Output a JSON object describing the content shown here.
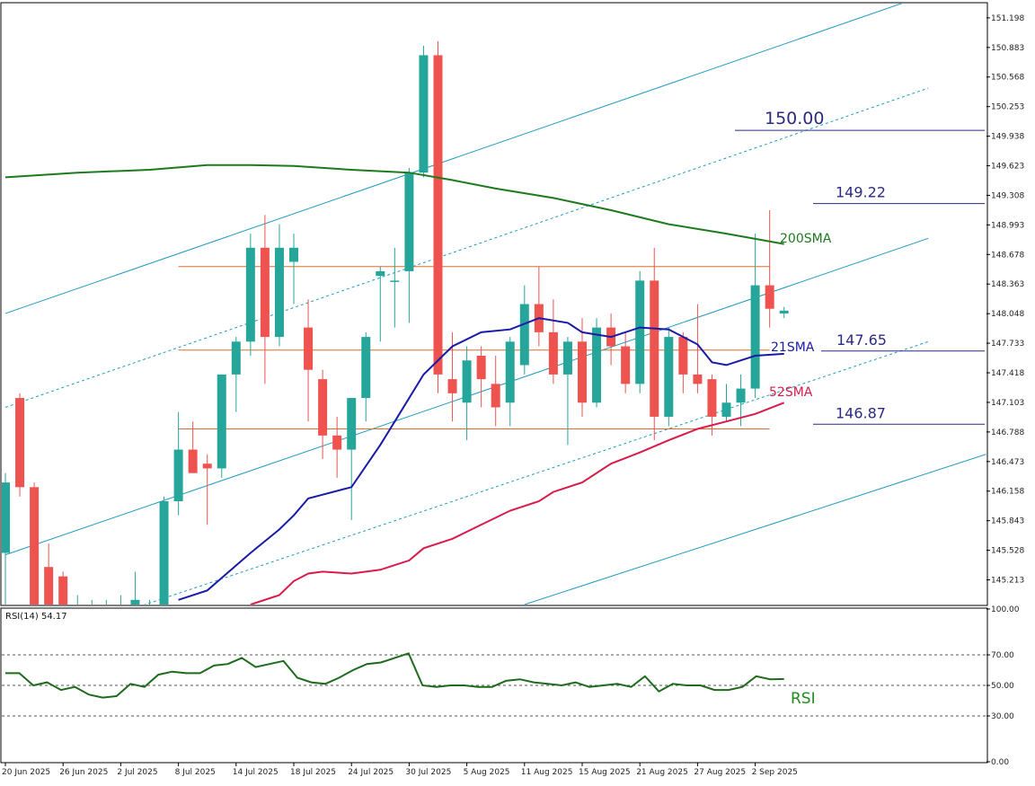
{
  "chart_data": [
    {
      "type": "candlestick",
      "title": "",
      "ylim": [
        144.95,
        151.35
      ],
      "y_ticks": [
        "151.198",
        "150.883",
        "150.568",
        "150.253",
        "149.938",
        "149.623",
        "149.308",
        "148.993",
        "148.678",
        "148.363",
        "148.048",
        "147.733",
        "147.418",
        "147.103",
        "146.788",
        "146.473",
        "146.158",
        "145.843",
        "145.528",
        "145.213"
      ],
      "x_labels": [
        "20 Jun 2025",
        "26 Jun 2025",
        "2 Jul 2025",
        "8 Jul 2025",
        "14 Jul 2025",
        "18 Jul 2025",
        "24 Jul 2025",
        "30 Jul 2025",
        "5 Aug 2025",
        "11 Aug 2025",
        "15 Aug 2025",
        "21 Aug 2025",
        "27 Aug 2025",
        "2 Sep 2025"
      ],
      "x_label_index": [
        0,
        4,
        8,
        12,
        16,
        20,
        24,
        28,
        32,
        36,
        40,
        44,
        48,
        52
      ],
      "colors": {
        "bull": "#26a69a",
        "bear": "#ef5350",
        "sma200": "#1e7a1e",
        "sma21": "#1a1aa8",
        "sma52": "#d81b4a",
        "channel": "#1e9bc0",
        "hline": "#e06b2a",
        "level": "#2b2b80"
      },
      "candles": [
        {
          "o": 145.5,
          "h": 146.35,
          "l": 144.95,
          "c": 146.25
        },
        {
          "o": 147.15,
          "h": 147.2,
          "l": 146.1,
          "c": 146.2
        },
        {
          "o": 146.2,
          "h": 146.25,
          "l": 144.95,
          "c": 144.95
        },
        {
          "o": 145.35,
          "h": 145.6,
          "l": 144.95,
          "c": 144.95
        },
        {
          "o": 145.25,
          "h": 145.3,
          "l": 144.95,
          "c": 144.95
        },
        {
          "o": 144.95,
          "h": 145.05,
          "l": 144.95,
          "c": 144.95
        },
        {
          "o": 144.95,
          "h": 145.0,
          "l": 144.95,
          "c": 144.95
        },
        {
          "o": 144.95,
          "h": 145.0,
          "l": 144.95,
          "c": 144.95
        },
        {
          "o": 144.95,
          "h": 145.05,
          "l": 144.95,
          "c": 144.95
        },
        {
          "o": 144.95,
          "h": 145.3,
          "l": 144.95,
          "c": 145.0
        },
        {
          "o": 144.95,
          "h": 145.0,
          "l": 144.95,
          "c": 144.95
        },
        {
          "o": 144.95,
          "h": 146.1,
          "l": 144.95,
          "c": 146.05
        },
        {
          "o": 146.05,
          "h": 147.0,
          "l": 145.9,
          "c": 146.6
        },
        {
          "o": 146.6,
          "h": 146.9,
          "l": 146.35,
          "c": 146.35
        },
        {
          "o": 146.45,
          "h": 146.55,
          "l": 145.8,
          "c": 146.4
        },
        {
          "o": 146.4,
          "h": 147.4,
          "l": 146.3,
          "c": 147.4
        },
        {
          "o": 147.4,
          "h": 147.8,
          "l": 147.0,
          "c": 147.75
        },
        {
          "o": 147.75,
          "h": 148.9,
          "l": 147.6,
          "c": 148.75
        },
        {
          "o": 148.75,
          "h": 149.1,
          "l": 147.3,
          "c": 147.8
        },
        {
          "o": 147.8,
          "h": 149.0,
          "l": 147.7,
          "c": 148.75
        },
        {
          "o": 148.6,
          "h": 148.9,
          "l": 148.15,
          "c": 148.75
        },
        {
          "o": 147.9,
          "h": 148.2,
          "l": 146.9,
          "c": 147.45
        },
        {
          "o": 147.35,
          "h": 147.45,
          "l": 146.5,
          "c": 146.75
        },
        {
          "o": 146.75,
          "h": 146.95,
          "l": 146.3,
          "c": 146.6
        },
        {
          "o": 146.6,
          "h": 147.1,
          "l": 145.85,
          "c": 147.15
        },
        {
          "o": 147.15,
          "h": 147.85,
          "l": 146.9,
          "c": 147.8
        },
        {
          "o": 148.45,
          "h": 148.55,
          "l": 147.75,
          "c": 148.5
        },
        {
          "o": 148.4,
          "h": 148.75,
          "l": 147.9,
          "c": 148.4
        },
        {
          "o": 148.5,
          "h": 149.6,
          "l": 147.95,
          "c": 149.55
        },
        {
          "o": 149.55,
          "h": 150.9,
          "l": 149.5,
          "c": 150.8
        },
        {
          "o": 150.8,
          "h": 150.95,
          "l": 147.2,
          "c": 147.4
        },
        {
          "o": 147.35,
          "h": 147.85,
          "l": 146.9,
          "c": 147.2
        },
        {
          "o": 147.1,
          "h": 147.7,
          "l": 146.7,
          "c": 147.55
        },
        {
          "o": 147.6,
          "h": 147.7,
          "l": 147.05,
          "c": 147.35
        },
        {
          "o": 147.3,
          "h": 147.6,
          "l": 146.85,
          "c": 147.05
        },
        {
          "o": 147.1,
          "h": 147.8,
          "l": 146.85,
          "c": 147.75
        },
        {
          "o": 147.5,
          "h": 148.35,
          "l": 147.4,
          "c": 148.15
        },
        {
          "o": 148.15,
          "h": 148.55,
          "l": 147.7,
          "c": 147.85
        },
        {
          "o": 147.85,
          "h": 148.2,
          "l": 147.3,
          "c": 147.4
        },
        {
          "o": 147.4,
          "h": 147.8,
          "l": 146.65,
          "c": 147.75
        },
        {
          "o": 147.75,
          "h": 148.0,
          "l": 146.95,
          "c": 147.1
        },
        {
          "o": 147.1,
          "h": 148.0,
          "l": 147.05,
          "c": 147.9
        },
        {
          "o": 147.9,
          "h": 148.05,
          "l": 147.5,
          "c": 147.7
        },
        {
          "o": 147.7,
          "h": 147.85,
          "l": 147.2,
          "c": 147.3
        },
        {
          "o": 147.3,
          "h": 148.5,
          "l": 147.2,
          "c": 148.4
        },
        {
          "o": 148.4,
          "h": 148.75,
          "l": 146.7,
          "c": 146.95
        },
        {
          "o": 146.95,
          "h": 147.9,
          "l": 146.85,
          "c": 147.8
        },
        {
          "o": 147.8,
          "h": 147.85,
          "l": 147.2,
          "c": 147.4
        },
        {
          "o": 147.4,
          "h": 148.15,
          "l": 147.2,
          "c": 147.3
        },
        {
          "o": 147.35,
          "h": 147.4,
          "l": 146.75,
          "c": 146.95
        },
        {
          "o": 146.95,
          "h": 147.3,
          "l": 146.9,
          "c": 147.1
        },
        {
          "o": 147.1,
          "h": 147.4,
          "l": 146.85,
          "c": 147.25
        },
        {
          "o": 147.25,
          "h": 148.9,
          "l": 147.15,
          "c": 148.35
        },
        {
          "o": 148.35,
          "h": 149.15,
          "l": 147.9,
          "c": 148.1
        },
        {
          "o": 148.05,
          "h": 148.12,
          "l": 148.0,
          "c": 148.08
        }
      ],
      "series": [
        {
          "name": "200SMA",
          "values": [
            [
              0,
              149.5
            ],
            [
              5,
              149.55
            ],
            [
              10,
              149.58
            ],
            [
              14,
              149.63
            ],
            [
              17,
              149.63
            ],
            [
              20,
              149.62
            ],
            [
              24,
              149.58
            ],
            [
              28,
              149.55
            ],
            [
              31,
              149.47
            ],
            [
              34,
              149.38
            ],
            [
              38,
              149.28
            ],
            [
              42,
              149.15
            ],
            [
              46,
              149.0
            ],
            [
              50,
              148.9
            ],
            [
              54,
              148.79
            ]
          ]
        },
        {
          "name": "21SMA",
          "values": [
            [
              12,
              145.0
            ],
            [
              14,
              145.1
            ],
            [
              17,
              145.5
            ],
            [
              19,
              145.75
            ],
            [
              20,
              145.9
            ],
            [
              21,
              146.08
            ],
            [
              22,
              146.12
            ],
            [
              24,
              146.2
            ],
            [
              26,
              146.65
            ],
            [
              27,
              146.9
            ],
            [
              29,
              147.4
            ],
            [
              31,
              147.7
            ],
            [
              33,
              147.85
            ],
            [
              35,
              147.88
            ],
            [
              37,
              148.0
            ],
            [
              39,
              147.95
            ],
            [
              40,
              147.85
            ],
            [
              42,
              147.8
            ],
            [
              44,
              147.9
            ],
            [
              46,
              147.88
            ],
            [
              48,
              147.72
            ],
            [
              49,
              147.53
            ],
            [
              50,
              147.5
            ],
            [
              51,
              147.55
            ],
            [
              52,
              147.6
            ],
            [
              54,
              147.62
            ]
          ]
        },
        {
          "name": "52SMA",
          "values": [
            [
              17,
              144.95
            ],
            [
              19,
              145.05
            ],
            [
              20,
              145.2
            ],
            [
              21,
              145.28
            ],
            [
              22,
              145.3
            ],
            [
              24,
              145.28
            ],
            [
              26,
              145.32
            ],
            [
              28,
              145.42
            ],
            [
              29,
              145.55
            ],
            [
              31,
              145.65
            ],
            [
              33,
              145.8
            ],
            [
              35,
              145.95
            ],
            [
              37,
              146.05
            ],
            [
              38,
              146.15
            ],
            [
              40,
              146.25
            ],
            [
              42,
              146.45
            ],
            [
              44,
              146.57
            ],
            [
              46,
              146.7
            ],
            [
              48,
              146.82
            ],
            [
              50,
              146.9
            ],
            [
              52,
              146.98
            ],
            [
              54,
              147.1
            ]
          ]
        }
      ],
      "horizontal_ranges": [
        {
          "value": 148.55,
          "from": 12,
          "to": 53
        },
        {
          "value": 147.66,
          "from": 12,
          "to": 53
        },
        {
          "value": 146.82,
          "from": 12,
          "to": 53
        }
      ],
      "channel": {
        "upper": [
          [
            0,
            148.05
          ],
          [
            64,
            151.45
          ]
        ],
        "mid": [
          [
            0,
            147.05
          ],
          [
            64,
            150.45
          ]
        ],
        "lower": [
          [
            0,
            145.48
          ],
          [
            64,
            148.85
          ]
        ],
        "lower_mid": [
          [
            0,
            144.45
          ],
          [
            64,
            147.75
          ]
        ],
        "bottom": [
          [
            36,
            144.95
          ],
          [
            68,
            146.55
          ]
        ]
      },
      "level_labels": [
        "150.00",
        "149.22",
        "147.65",
        "146.87"
      ],
      "level_values": [
        150.0,
        149.22,
        147.65,
        146.87
      ],
      "ma_labels": [
        "200SMA",
        "21SMA",
        "52SMA"
      ]
    },
    {
      "type": "line",
      "title": "RSI(14) 54.17",
      "ylim": [
        0,
        100
      ],
      "y_ticks": [
        "100.00",
        "70.00",
        "50.00",
        "30.00",
        "0.00"
      ],
      "levels": [
        70,
        50,
        30
      ],
      "label": "RSI",
      "colors": {
        "line": "#1e6b1e",
        "levels": "#555555"
      },
      "series": [
        {
          "name": "RSI",
          "values": [
            58,
            58,
            50,
            52,
            47,
            49,
            44,
            42,
            43,
            51,
            49,
            57,
            59,
            58,
            58,
            63,
            64,
            68,
            62,
            64,
            66,
            55,
            52,
            51,
            55,
            60,
            64,
            65,
            68,
            71,
            50,
            49,
            50,
            50,
            49,
            49,
            53,
            54,
            52,
            51,
            50,
            52,
            49,
            50,
            51,
            49,
            56,
            46,
            51,
            50,
            50,
            47,
            47,
            49,
            56,
            54,
            54.17
          ]
        }
      ]
    }
  ]
}
